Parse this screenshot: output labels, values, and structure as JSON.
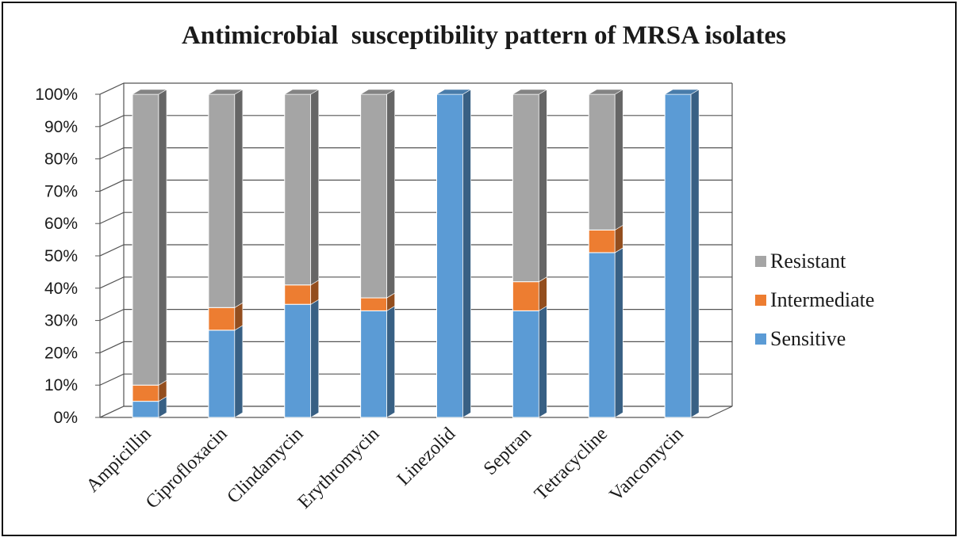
{
  "chart_data": {
    "type": "bar",
    "stacked": true,
    "percent_stacked": true,
    "three_d": true,
    "title": "Antimicrobial  susceptibility pattern of MRSA isolates",
    "xlabel": "",
    "ylabel": "",
    "ylim": [
      0,
      100
    ],
    "y_ticks": [
      "0%",
      "10%",
      "20%",
      "30%",
      "40%",
      "50%",
      "60%",
      "70%",
      "80%",
      "90%",
      "100%"
    ],
    "grid": true,
    "legend_position": "right",
    "categories": [
      "Ampicillin",
      "Ciprofloxacin",
      "Clindamycin",
      "Erythromycin",
      "Linezolid",
      "Septran",
      "Tetracycline",
      "Vancomycin"
    ],
    "series": [
      {
        "name": "Sensitive",
        "color": "#5b9bd5",
        "values": [
          5,
          27,
          35,
          33,
          100,
          33,
          51,
          100
        ]
      },
      {
        "name": "Intermediate",
        "color": "#ed7d31",
        "values": [
          5,
          7,
          6,
          4,
          0,
          9,
          7,
          0
        ]
      },
      {
        "name": "Resistant",
        "color": "#a5a5a5",
        "values": [
          90,
          66,
          59,
          63,
          0,
          58,
          42,
          0
        ]
      }
    ],
    "legend_order": [
      "Resistant",
      "Intermediate",
      "Sensitive"
    ]
  }
}
